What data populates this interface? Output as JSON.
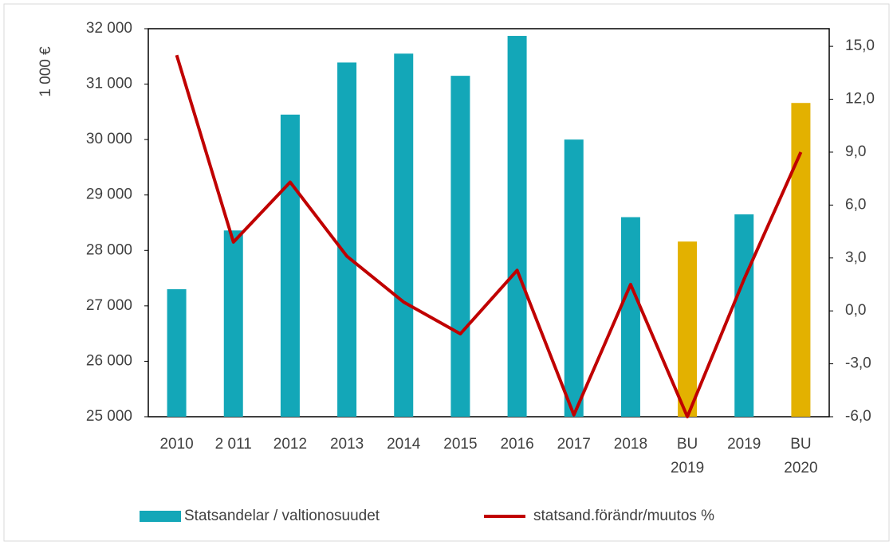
{
  "chart_data": {
    "type": "bar_line",
    "ylabel": "1 000 €",
    "categories": [
      "2010",
      "2 011",
      "2012",
      "2013",
      "2014",
      "2015",
      "2016",
      "2017",
      "2018",
      "BU\n2019",
      "2019",
      "BU\n2020"
    ],
    "series": [
      {
        "name": "Statsandelar / valtionosuudet",
        "type": "bar",
        "color": "#13a7b8",
        "colors": [
          "#13a7b8",
          "#13a7b8",
          "#13a7b8",
          "#13a7b8",
          "#13a7b8",
          "#13a7b8",
          "#13a7b8",
          "#13a7b8",
          "#13a7b8",
          "#e3b100",
          "#13a7b8",
          "#e3b100"
        ],
        "values": [
          27300,
          28360,
          30450,
          31390,
          31550,
          31150,
          31870,
          30000,
          28600,
          28160,
          28650,
          30660
        ]
      },
      {
        "name": "statsand.förändr/muutos %",
        "type": "line",
        "axis": "y2",
        "color": "#c00000",
        "values": [
          14.5,
          3.9,
          7.3,
          3.1,
          0.5,
          -1.3,
          2.3,
          -5.9,
          1.5,
          -6.0,
          1.8,
          9.0
        ]
      }
    ],
    "ylim": [
      25000,
      32000
    ],
    "yticks": [
      {
        "value": 25000,
        "label": "25 000"
      },
      {
        "value": 26000,
        "label": "26 000"
      },
      {
        "value": 27000,
        "label": "27 000"
      },
      {
        "value": 28000,
        "label": "28 000"
      },
      {
        "value": 29000,
        "label": "29 000"
      },
      {
        "value": 30000,
        "label": "30 000"
      },
      {
        "value": 31000,
        "label": "31 000"
      },
      {
        "value": 32000,
        "label": "32 000"
      }
    ],
    "y2lim": [
      -6,
      16
    ],
    "y2ticks": [
      {
        "value": -6,
        "label": "-6,0"
      },
      {
        "value": -3,
        "label": "-3,0"
      },
      {
        "value": 0,
        "label": "0,0"
      },
      {
        "value": 3,
        "label": "3,0"
      },
      {
        "value": 6,
        "label": "6,0"
      },
      {
        "value": 9,
        "label": "9,0"
      },
      {
        "value": 12,
        "label": "12,0"
      },
      {
        "value": 15,
        "label": "15,0"
      }
    ],
    "legend": "bottom"
  }
}
